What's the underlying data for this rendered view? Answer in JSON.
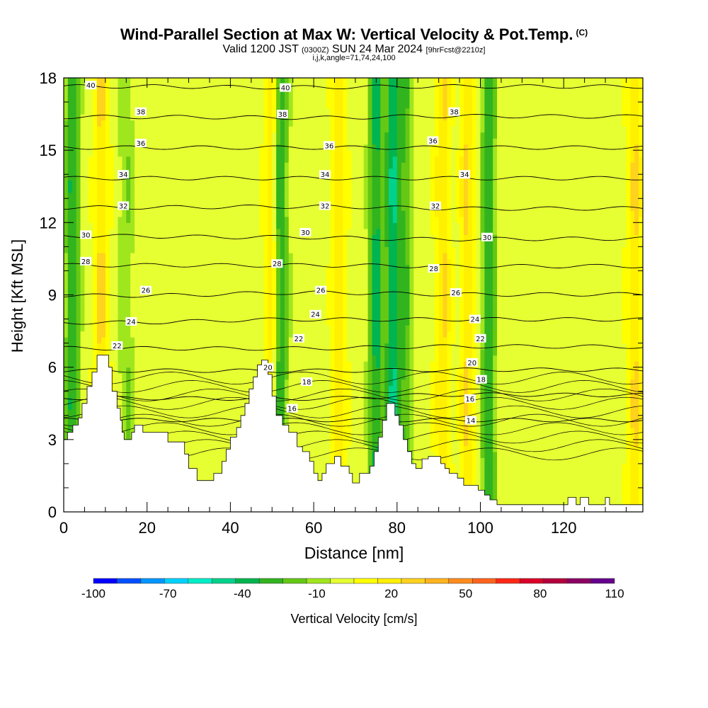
{
  "title": "Wind-Parallel Section at Max W: Vertical Velocity & Pot.Temp.",
  "copyright_mark": "(C)",
  "subtitle": {
    "valid": "Valid 1200 JST",
    "zulu": "(0300Z)",
    "date": "SUN 24 Mar 2024",
    "fcst": "[9hrFcst@2210z]"
  },
  "params": "i,j,k,angle=71,74,24,100",
  "chart_data": {
    "type": "heatmap",
    "title": "Wind-Parallel Section at Max W: Vertical Velocity & Pot.Temp.",
    "xlabel": "Distance [nm]",
    "ylabel": "Height [Kft MSL]",
    "xlim": [
      0,
      139
    ],
    "ylim": [
      0,
      18
    ],
    "x_ticks": [
      0,
      20,
      40,
      60,
      80,
      100,
      120
    ],
    "y_ticks": [
      0,
      3,
      6,
      9,
      12,
      15,
      18
    ],
    "field": "Vertical Velocity [cm/s]",
    "colorbar": {
      "label": "Vertical Velocity [cm/s]",
      "min": -100,
      "max": 110,
      "step": 10,
      "tick_values": [
        -100,
        -70,
        -40,
        -10,
        20,
        50,
        80,
        110
      ],
      "colors": [
        "#0000ff",
        "#0050ff",
        "#0096ff",
        "#00d2ff",
        "#00eec8",
        "#00d28c",
        "#00b450",
        "#32b41e",
        "#64c814",
        "#a0e61e",
        "#e6ff32",
        "#ffff00",
        "#fff000",
        "#ffd21e",
        "#ffb41e",
        "#ff8c1e",
        "#ff641e",
        "#ff2814",
        "#dc0028",
        "#b4003c",
        "#8c0064",
        "#64008c"
      ]
    },
    "vertical_velocity_bands": [
      {
        "x_center": 2,
        "sign": "down",
        "approx_cm_s": -35
      },
      {
        "x_center": 9,
        "sign": "up",
        "approx_cm_s": 25
      },
      {
        "x_center": 15,
        "sign": "down",
        "approx_cm_s": -15
      },
      {
        "x_center": 50,
        "sign": "up",
        "approx_cm_s": 25
      },
      {
        "x_center": 52,
        "sign": "down",
        "approx_cm_s": -40
      },
      {
        "x_center": 66,
        "sign": "up",
        "approx_cm_s": 20
      },
      {
        "x_center": 75,
        "sign": "down",
        "approx_cm_s": -40
      },
      {
        "x_center": 79,
        "sign": "down",
        "approx_cm_s": -45
      },
      {
        "x_center": 82,
        "sign": "down",
        "approx_cm_s": -25
      },
      {
        "x_center": 91,
        "sign": "up",
        "approx_cm_s": 25
      },
      {
        "x_center": 97,
        "sign": "up",
        "approx_cm_s": 25
      },
      {
        "x_center": 102,
        "sign": "down",
        "approx_cm_s": -35
      },
      {
        "x_center": 137,
        "sign": "up",
        "approx_cm_s": 25
      }
    ],
    "pot_temp_labels": [
      {
        "text": "40",
        "x": 6.5,
        "y": 17.7
      },
      {
        "text": "38",
        "x": 18.5,
        "y": 16.6
      },
      {
        "text": "36",
        "x": 18.5,
        "y": 15.3
      },
      {
        "text": "34",
        "x": 14.3,
        "y": 14.0
      },
      {
        "text": "32",
        "x": 14.3,
        "y": 12.7
      },
      {
        "text": "30",
        "x": 5.3,
        "y": 11.5
      },
      {
        "text": "28",
        "x": 5.3,
        "y": 10.4
      },
      {
        "text": "26",
        "x": 19.7,
        "y": 9.2
      },
      {
        "text": "24",
        "x": 16.2,
        "y": 7.9
      },
      {
        "text": "22",
        "x": 12.8,
        "y": 6.9
      },
      {
        "text": "40",
        "x": 53.2,
        "y": 17.6
      },
      {
        "text": "38",
        "x": 52.5,
        "y": 16.5
      },
      {
        "text": "36",
        "x": 63.7,
        "y": 15.2
      },
      {
        "text": "34",
        "x": 62.7,
        "y": 14.0
      },
      {
        "text": "32",
        "x": 62.7,
        "y": 12.7
      },
      {
        "text": "30",
        "x": 58.0,
        "y": 11.6
      },
      {
        "text": "28",
        "x": 51.2,
        "y": 10.3
      },
      {
        "text": "26",
        "x": 61.7,
        "y": 9.2
      },
      {
        "text": "24",
        "x": 60.4,
        "y": 8.2
      },
      {
        "text": "22",
        "x": 56.4,
        "y": 7.2
      },
      {
        "text": "20",
        "x": 49.0,
        "y": 6.0
      },
      {
        "text": "18",
        "x": 58.3,
        "y": 5.4
      },
      {
        "text": "16",
        "x": 54.8,
        "y": 4.3
      },
      {
        "text": "38",
        "x": 93.7,
        "y": 16.6
      },
      {
        "text": "36",
        "x": 88.6,
        "y": 15.4
      },
      {
        "text": "34",
        "x": 96.2,
        "y": 14.0
      },
      {
        "text": "32",
        "x": 89.2,
        "y": 12.7
      },
      {
        "text": "30",
        "x": 101.6,
        "y": 11.4
      },
      {
        "text": "28",
        "x": 88.8,
        "y": 10.1
      },
      {
        "text": "26",
        "x": 94.1,
        "y": 9.1
      },
      {
        "text": "24",
        "x": 98.7,
        "y": 8.0
      },
      {
        "text": "22",
        "x": 100.0,
        "y": 7.2
      },
      {
        "text": "20",
        "x": 98.0,
        "y": 6.2
      },
      {
        "text": "18",
        "x": 100.2,
        "y": 5.5
      },
      {
        "text": "16",
        "x": 97.5,
        "y": 4.7
      },
      {
        "text": "14",
        "x": 97.7,
        "y": 3.8
      }
    ],
    "terrain": [
      [
        0,
        3.0
      ],
      [
        0.9,
        3.0
      ],
      [
        0.9,
        3.3
      ],
      [
        2.2,
        3.3
      ],
      [
        2.2,
        3.6
      ],
      [
        3.5,
        3.6
      ],
      [
        3.5,
        3.9
      ],
      [
        4.4,
        3.9
      ],
      [
        4.4,
        4.5
      ],
      [
        5.6,
        4.5
      ],
      [
        5.6,
        5.2
      ],
      [
        6.8,
        5.2
      ],
      [
        6.8,
        5.8
      ],
      [
        8.0,
        5.8
      ],
      [
        8.0,
        6.5
      ],
      [
        10.8,
        6.5
      ],
      [
        10.8,
        6.0
      ],
      [
        11.6,
        6.0
      ],
      [
        11.6,
        5.0
      ],
      [
        12.8,
        5.0
      ],
      [
        12.8,
        4.3
      ],
      [
        13.6,
        4.3
      ],
      [
        13.6,
        3.8
      ],
      [
        14.0,
        3.8
      ],
      [
        14.0,
        3.3
      ],
      [
        14.5,
        3.3
      ],
      [
        14.5,
        3.0
      ],
      [
        16.3,
        3.0
      ],
      [
        16.3,
        3.3
      ],
      [
        17.0,
        3.3
      ],
      [
        17.0,
        3.6
      ],
      [
        19.0,
        3.6
      ],
      [
        19.0,
        3.3
      ],
      [
        22.0,
        3.3
      ],
      [
        25.0,
        3.3
      ],
      [
        25.0,
        2.9
      ],
      [
        29.0,
        2.9
      ],
      [
        29.0,
        2.4
      ],
      [
        30.0,
        2.4
      ],
      [
        30.0,
        1.8
      ],
      [
        32.0,
        1.8
      ],
      [
        32.0,
        1.3
      ],
      [
        36.0,
        1.3
      ],
      [
        36.0,
        1.6
      ],
      [
        38.0,
        1.6
      ],
      [
        38.0,
        2.1
      ],
      [
        39.0,
        2.1
      ],
      [
        39.0,
        2.6
      ],
      [
        40.0,
        2.6
      ],
      [
        40.0,
        3.1
      ],
      [
        41.5,
        3.1
      ],
      [
        41.5,
        3.5
      ],
      [
        42.5,
        3.5
      ],
      [
        42.5,
        4.0
      ],
      [
        43.5,
        4.0
      ],
      [
        43.5,
        4.5
      ],
      [
        44.5,
        4.5
      ],
      [
        44.5,
        5.1
      ],
      [
        45.5,
        5.1
      ],
      [
        45.5,
        5.6
      ],
      [
        46.5,
        5.6
      ],
      [
        46.5,
        6.1
      ],
      [
        47.5,
        6.1
      ],
      [
        47.5,
        6.3
      ],
      [
        49.0,
        6.3
      ],
      [
        49.0,
        5.7
      ],
      [
        50.0,
        5.7
      ],
      [
        50.0,
        4.8
      ],
      [
        51.0,
        4.8
      ],
      [
        51.0,
        4.0
      ],
      [
        52.5,
        4.0
      ],
      [
        52.5,
        3.6
      ],
      [
        54.0,
        3.6
      ],
      [
        54.0,
        3.3
      ],
      [
        56.0,
        3.3
      ],
      [
        56.0,
        2.7
      ],
      [
        57.3,
        2.7
      ],
      [
        57.3,
        2.5
      ],
      [
        59.0,
        2.5
      ],
      [
        59.0,
        2.1
      ],
      [
        60.0,
        2.1
      ],
      [
        60.0,
        1.6
      ],
      [
        61.0,
        1.6
      ],
      [
        61.0,
        1.3
      ],
      [
        62.0,
        1.3
      ],
      [
        62.0,
        1.6
      ],
      [
        63.0,
        1.6
      ],
      [
        63.0,
        2.0
      ],
      [
        65.0,
        2.0
      ],
      [
        65.0,
        2.3
      ],
      [
        66.5,
        2.3
      ],
      [
        66.5,
        1.9
      ],
      [
        68.5,
        1.9
      ],
      [
        68.5,
        1.6
      ],
      [
        69.3,
        1.6
      ],
      [
        69.3,
        1.2
      ],
      [
        71.0,
        1.2
      ],
      [
        71.0,
        1.6
      ],
      [
        73.5,
        1.6
      ],
      [
        73.5,
        1.9
      ],
      [
        74.5,
        1.9
      ],
      [
        74.5,
        2.5
      ],
      [
        75.5,
        2.5
      ],
      [
        75.5,
        3.1
      ],
      [
        76.5,
        3.1
      ],
      [
        76.5,
        3.8
      ],
      [
        77.5,
        3.8
      ],
      [
        77.5,
        4.5
      ],
      [
        79.5,
        4.5
      ],
      [
        79.5,
        4.0
      ],
      [
        80.5,
        4.0
      ],
      [
        80.5,
        3.6
      ],
      [
        81.5,
        3.6
      ],
      [
        81.5,
        3.0
      ],
      [
        82.5,
        3.0
      ],
      [
        82.5,
        2.5
      ],
      [
        83.5,
        2.5
      ],
      [
        83.5,
        2.0
      ],
      [
        84.5,
        2.0
      ],
      [
        84.5,
        1.8
      ],
      [
        86.0,
        1.8
      ],
      [
        86.0,
        2.2
      ],
      [
        87.5,
        2.2
      ],
      [
        87.5,
        2.3
      ],
      [
        90.5,
        2.3
      ],
      [
        90.5,
        2.0
      ],
      [
        91.5,
        2.0
      ],
      [
        91.5,
        1.8
      ],
      [
        92.5,
        1.8
      ],
      [
        92.5,
        1.6
      ],
      [
        94.5,
        1.6
      ],
      [
        94.5,
        1.4
      ],
      [
        96.0,
        1.4
      ],
      [
        96.0,
        1.1
      ],
      [
        99.5,
        1.1
      ],
      [
        99.5,
        0.9
      ],
      [
        101.0,
        0.9
      ],
      [
        101.0,
        0.7
      ],
      [
        102.3,
        0.7
      ],
      [
        102.3,
        0.5
      ],
      [
        104.0,
        0.5
      ],
      [
        104.0,
        0.3
      ],
      [
        121.0,
        0.3
      ],
      [
        121.0,
        0.6
      ],
      [
        123.0,
        0.6
      ],
      [
        123.0,
        0.3
      ],
      [
        124.0,
        0.3
      ],
      [
        124.0,
        0.6
      ],
      [
        126.0,
        0.6
      ],
      [
        126.0,
        0.3
      ],
      [
        130.0,
        0.3
      ],
      [
        130.0,
        0.6
      ],
      [
        131.0,
        0.6
      ],
      [
        131.0,
        0.3
      ],
      [
        139.0,
        0.3
      ],
      [
        139.0,
        0
      ]
    ]
  }
}
